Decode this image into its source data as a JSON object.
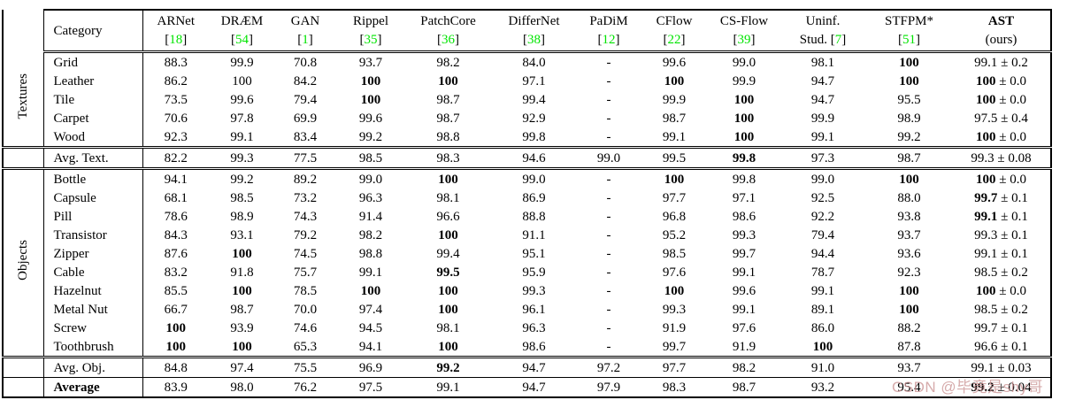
{
  "colors": {
    "citation_green": "#00e400",
    "watermark_pink": "#c98f90",
    "text_black": "#000000"
  },
  "watermark": {
    "text": "CSDN @毕竟是shy哥"
  },
  "table": {
    "header": {
      "category_label": "Category",
      "methods": [
        {
          "name": "ARNet",
          "cite": "18"
        },
        {
          "name": "DRÆM",
          "cite": "54"
        },
        {
          "name": "GAN",
          "cite": "1"
        },
        {
          "name": "Rippel",
          "cite": "35"
        },
        {
          "name": "PatchCore",
          "cite": "36"
        },
        {
          "name": "DifferNet",
          "cite": "38"
        },
        {
          "name": "PaDiM",
          "cite": "12"
        },
        {
          "name": "CFlow",
          "cite": "22"
        },
        {
          "name": "CS-Flow",
          "cite": "39"
        },
        {
          "name": "Uninf.",
          "cite": "7",
          "cite_prefix": "Stud. "
        },
        {
          "name": "STFPM*",
          "cite": "51"
        },
        {
          "name": "AST",
          "bold": true,
          "sub": "(ours)"
        }
      ]
    },
    "group_labels": {
      "textures": "Textures",
      "objects": "Objects"
    },
    "rows": [
      {
        "label": "Grid",
        "cls": "",
        "group_start": {
          "key": "textures",
          "span": 5
        },
        "cells": [
          "88.3",
          "99.9",
          "70.8",
          "93.7",
          "98.2",
          "84.0",
          "-",
          "99.6",
          "99.0",
          "98.1",
          {
            "t": "100",
            "b": true
          },
          {
            "t": "99.1",
            "pm": "0.2"
          }
        ]
      },
      {
        "label": "Leather",
        "cls": "",
        "cells": [
          "86.2",
          "100",
          "84.2",
          {
            "t": "100",
            "b": true
          },
          {
            "t": "100",
            "b": true
          },
          "97.1",
          "-",
          {
            "t": "100",
            "b": true
          },
          "99.9",
          "94.7",
          {
            "t": "100",
            "b": true
          },
          {
            "t": "100",
            "b": true,
            "pm": "0.0"
          }
        ]
      },
      {
        "label": "Tile",
        "cls": "",
        "cells": [
          "73.5",
          "99.6",
          "79.4",
          {
            "t": "100",
            "b": true
          },
          "98.7",
          "99.4",
          "-",
          "99.9",
          {
            "t": "100",
            "b": true
          },
          "94.7",
          "95.5",
          {
            "t": "100",
            "b": true,
            "pm": "0.0"
          }
        ]
      },
      {
        "label": "Carpet",
        "cls": "",
        "cells": [
          "70.6",
          "97.8",
          "69.9",
          "99.6",
          "98.7",
          "92.9",
          "-",
          "98.7",
          {
            "t": "100",
            "b": true
          },
          "99.9",
          "98.9",
          {
            "t": "97.5",
            "pm": "0.4"
          }
        ]
      },
      {
        "label": "Wood",
        "cls": "",
        "cells": [
          "92.3",
          "99.1",
          "83.4",
          "99.2",
          "98.8",
          "99.8",
          "-",
          "99.1",
          {
            "t": "100",
            "b": true
          },
          "99.1",
          "99.2",
          {
            "t": "100",
            "b": true,
            "pm": "0.0"
          }
        ]
      },
      {
        "label": "Avg. Text.",
        "cls": "avg1",
        "own_group_cell": true,
        "cells": [
          "82.2",
          "99.3",
          "77.5",
          "98.5",
          "98.3",
          "94.6",
          "99.0",
          "99.5",
          {
            "t": "99.8",
            "b": true
          },
          "97.3",
          "98.7",
          {
            "t": "99.3",
            "pm": "0.08"
          }
        ]
      },
      {
        "label": "Bottle",
        "cls": "",
        "group_start": {
          "key": "objects",
          "span": 10
        },
        "cells": [
          "94.1",
          "99.2",
          "89.2",
          "99.0",
          {
            "t": "100",
            "b": true
          },
          "99.0",
          "-",
          {
            "t": "100",
            "b": true
          },
          "99.8",
          "99.0",
          {
            "t": "100",
            "b": true
          },
          {
            "t": "100",
            "b": true,
            "pm": "0.0"
          }
        ]
      },
      {
        "label": "Capsule",
        "cls": "",
        "cells": [
          "68.1",
          "98.5",
          "73.2",
          "96.3",
          "98.1",
          "86.9",
          "-",
          "97.7",
          "97.1",
          "92.5",
          "88.0",
          {
            "t": "99.7",
            "b": true,
            "pm": "0.1"
          }
        ]
      },
      {
        "label": "Pill",
        "cls": "",
        "cells": [
          "78.6",
          "98.9",
          "74.3",
          "91.4",
          "96.6",
          "88.8",
          "-",
          "96.8",
          "98.6",
          "92.2",
          "93.8",
          {
            "t": "99.1",
            "b": true,
            "pm": "0.1"
          }
        ]
      },
      {
        "label": "Transistor",
        "cls": "",
        "cells": [
          "84.3",
          "93.1",
          "79.2",
          "98.2",
          {
            "t": "100",
            "b": true
          },
          "91.1",
          "-",
          "95.2",
          "99.3",
          "79.4",
          "93.7",
          {
            "t": "99.3",
            "pm": "0.1"
          }
        ]
      },
      {
        "label": "Zipper",
        "cls": "",
        "cells": [
          "87.6",
          {
            "t": "100",
            "b": true
          },
          "74.5",
          "98.8",
          "99.4",
          "95.1",
          "-",
          "98.5",
          "99.7",
          "94.4",
          "93.6",
          {
            "t": "99.1",
            "pm": "0.1"
          }
        ]
      },
      {
        "label": "Cable",
        "cls": "",
        "cells": [
          "83.2",
          "91.8",
          "75.7",
          "99.1",
          {
            "t": "99.5",
            "b": true
          },
          "95.9",
          "-",
          "97.6",
          "99.1",
          "78.7",
          "92.3",
          {
            "t": "98.5",
            "pm": "0.2"
          }
        ]
      },
      {
        "label": "Hazelnut",
        "cls": "",
        "cells": [
          "85.5",
          {
            "t": "100",
            "b": true
          },
          "78.5",
          {
            "t": "100",
            "b": true
          },
          {
            "t": "100",
            "b": true
          },
          "99.3",
          "-",
          {
            "t": "100",
            "b": true
          },
          "99.6",
          "99.1",
          {
            "t": "100",
            "b": true
          },
          {
            "t": "100",
            "b": true,
            "pm": "0.0"
          }
        ]
      },
      {
        "label": "Metal Nut",
        "cls": "",
        "cells": [
          "66.7",
          "98.7",
          "70.0",
          "97.4",
          {
            "t": "100",
            "b": true
          },
          "96.1",
          "-",
          "99.3",
          "99.1",
          "89.1",
          {
            "t": "100",
            "b": true
          },
          {
            "t": "98.5",
            "pm": "0.2"
          }
        ]
      },
      {
        "label": "Screw",
        "cls": "",
        "cells": [
          {
            "t": "100",
            "b": true
          },
          "93.9",
          "74.6",
          "94.5",
          "98.1",
          "96.3",
          "-",
          "91.9",
          "97.6",
          "86.0",
          "88.2",
          {
            "t": "99.7",
            "pm": "0.1"
          }
        ]
      },
      {
        "label": "Toothbrush",
        "cls": "",
        "cells": [
          {
            "t": "100",
            "b": true
          },
          {
            "t": "100",
            "b": true
          },
          "65.3",
          "94.1",
          {
            "t": "100",
            "b": true
          },
          "98.6",
          "-",
          "99.7",
          "91.9",
          {
            "t": "100",
            "b": true
          },
          "87.8",
          {
            "t": "96.6",
            "pm": "0.1"
          }
        ]
      },
      {
        "label": "Avg. Obj.",
        "cls": "avg2",
        "own_group_cell": true,
        "cells": [
          "84.8",
          "97.4",
          "75.5",
          "96.9",
          {
            "t": "99.2",
            "b": true
          },
          "94.7",
          "97.2",
          "97.7",
          "98.2",
          "91.0",
          "93.7",
          {
            "t": "99.1",
            "pm": "0.03"
          }
        ]
      },
      {
        "label": "Average",
        "cls": "avgend",
        "label_bold": true,
        "own_group_cell": true,
        "cells": [
          "83.9",
          "98.0",
          "76.2",
          "97.5",
          "99.1",
          "94.7",
          "97.9",
          "98.3",
          "98.7",
          "93.2",
          "95.4",
          {
            "t": "99.2",
            "b": true,
            "pm": "0.04"
          }
        ]
      }
    ]
  }
}
